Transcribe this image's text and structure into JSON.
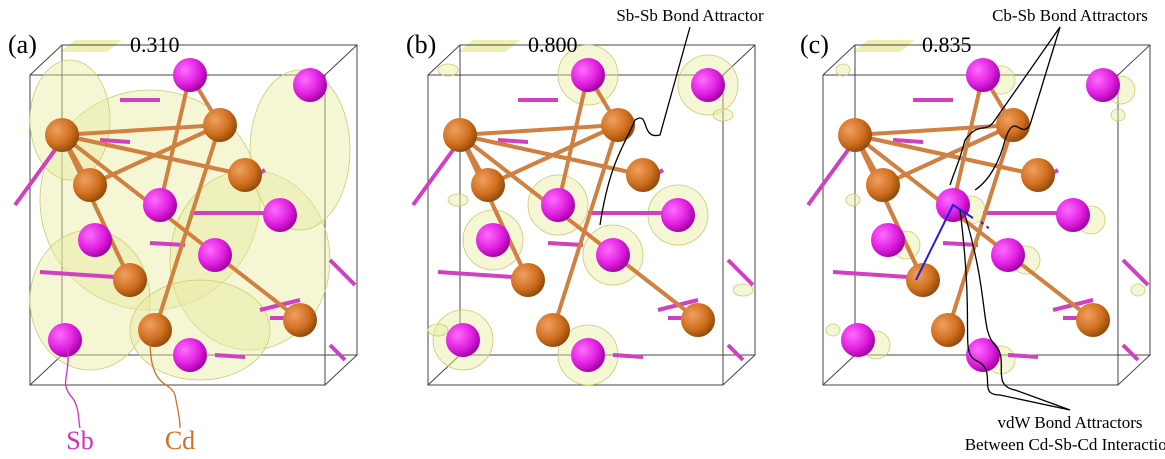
{
  "panels": [
    {
      "label": "(a)",
      "isovalue": "0.310",
      "atom_labels": [
        "Sb",
        "Cd"
      ]
    },
    {
      "label": "(b)",
      "isovalue": "0.800",
      "annotations": [
        "Sb-Sb Bond Attractor"
      ]
    },
    {
      "label": "(c)",
      "isovalue": "0.835",
      "annotations": [
        "Cb-Sb Bond Attractors",
        "vdW Bond Attractors",
        "Between Cd-Sb-Cd Interaction"
      ]
    }
  ]
}
